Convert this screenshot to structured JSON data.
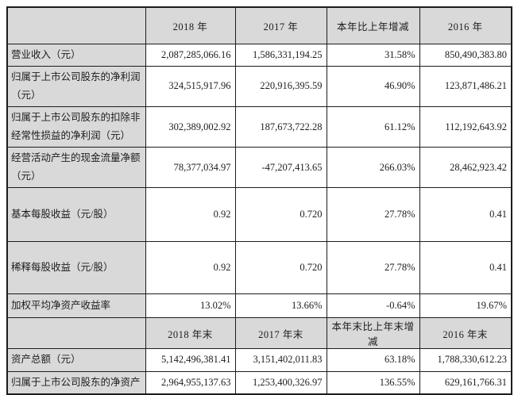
{
  "colors": {
    "header_bg": "#d9d9d9",
    "border": "#1c1c1c",
    "text": "#1d1d1d",
    "cell_bg": "#ffffff"
  },
  "section1": {
    "headers": {
      "label": "",
      "y2018": "2018 年",
      "y2017": "2017 年",
      "change": "本年比上年增减",
      "y2016": "2016 年"
    },
    "rows": [
      {
        "label": "营业收入（元）",
        "y2018": "2,087,285,066.16",
        "y2017": "1,586,331,194.25",
        "change": "31.58%",
        "y2016": "850,490,383.80"
      },
      {
        "label": "归属于上市公司股东的净利润（元）",
        "y2018": "324,515,917.96",
        "y2017": "220,916,395.59",
        "change": "46.90%",
        "y2016": "123,871,486.21"
      },
      {
        "label": "归属于上市公司股东的扣除非经常性损益的净利润（元）",
        "y2018": "302,389,002.92",
        "y2017": "187,673,722.28",
        "change": "61.12%",
        "y2016": "112,192,643.92"
      },
      {
        "label": "经营活动产生的现金流量净额（元）",
        "y2018": "78,377,034.97",
        "y2017": "-47,207,413.65",
        "change": "266.03%",
        "y2016": "28,462,923.42"
      },
      {
        "label": "基本每股收益（元/股）",
        "y2018": "0.92",
        "y2017": "0.720",
        "change": "27.78%",
        "y2016": "0.41"
      },
      {
        "label": "稀释每股收益（元/股）",
        "y2018": "0.92",
        "y2017": "0.720",
        "change": "27.78%",
        "y2016": "0.41"
      },
      {
        "label": "加权平均净资产收益率",
        "y2018": "13.02%",
        "y2017": "13.66%",
        "change": "-0.64%",
        "y2016": "19.67%"
      }
    ]
  },
  "section2": {
    "headers": {
      "label": "",
      "y2018": "2018 年末",
      "y2017": "2017 年末",
      "change": "本年末比上年末增减",
      "y2016": "2016 年末"
    },
    "rows": [
      {
        "label": "资产总额（元）",
        "y2018": "5,142,496,381.41",
        "y2017": "3,151,402,011.83",
        "change": "63.18%",
        "y2016": "1,788,330,612.23"
      },
      {
        "label": "归属于上市公司股东的净资产",
        "y2018": "2,964,955,137.63",
        "y2017": "1,253,400,326.97",
        "change": "136.55%",
        "y2016": "629,161,766.31"
      }
    ]
  }
}
